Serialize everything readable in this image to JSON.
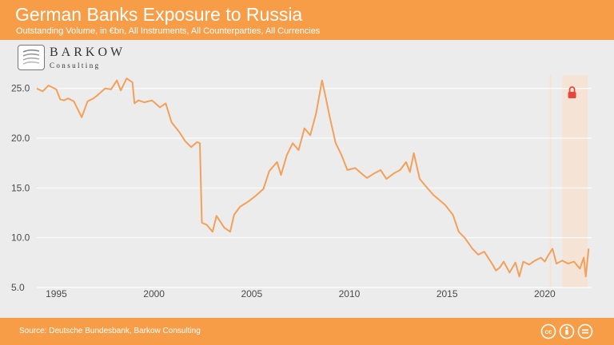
{
  "header": {
    "title": "German Banks Exposure to Russia",
    "subtitle": "Outstanding Volume, in €bn, All Instruments, All Counterparties, All Currencies"
  },
  "logo": {
    "name": "BARKOW",
    "sub": "Consulting"
  },
  "footer": {
    "source": "Source: Deutsche Bundesbank, Barkow Consulting",
    "license_icons": [
      "cc-icon",
      "by-icon",
      "nd-icon"
    ]
  },
  "colors": {
    "accent": "#f79d48",
    "line": "#f2a05a",
    "lock": "#e8453c",
    "shade": "#f6e3d3"
  },
  "chart_data": {
    "type": "line",
    "title": "German Banks Exposure to Russia",
    "xlabel": "",
    "ylabel": "€bn",
    "xlim": [
      1994.0,
      2022.4
    ],
    "ylim": [
      5.0,
      26.5
    ],
    "xticks": [
      1995,
      2000,
      2005,
      2010,
      2015,
      2020
    ],
    "xtick_labels": [
      "1995",
      "2000",
      "2005",
      "2010",
      "2015",
      "2020"
    ],
    "yticks": [
      5.0,
      10.0,
      15.0,
      20.0,
      25.0
    ],
    "ytick_labels": [
      "5.0",
      "10.0",
      "15.0",
      "20.0",
      "25.0"
    ],
    "grid": "horizontal",
    "shaded_ranges": [
      [
        2020.25,
        2020.35
      ],
      [
        2020.9,
        2022.2
      ]
    ],
    "annotation": "lock-icon",
    "annotation_x": 2021.4,
    "series": [
      {
        "name": "Exposure",
        "x": [
          1994.0,
          1994.3,
          1994.6,
          1995.0,
          1995.2,
          1995.4,
          1995.6,
          1995.9,
          1996.3,
          1996.6,
          1996.9,
          1997.1,
          1997.5,
          1997.8,
          1998.1,
          1998.3,
          1998.6,
          1998.9,
          1999.0,
          1999.2,
          1999.5,
          1999.9,
          2000.3,
          2000.6,
          2000.9,
          2001.3,
          2001.6,
          2001.9,
          2002.2,
          2002.35,
          2002.45,
          2002.7,
          2003.0,
          2003.2,
          2003.6,
          2003.9,
          2004.1,
          2004.4,
          2004.8,
          2005.2,
          2005.6,
          2005.9,
          2006.3,
          2006.5,
          2006.8,
          2007.1,
          2007.4,
          2007.7,
          2008.0,
          2008.3,
          2008.6,
          2008.8,
          2009.0,
          2009.3,
          2009.6,
          2009.9,
          2010.3,
          2010.6,
          2010.9,
          2011.3,
          2011.6,
          2011.9,
          2012.3,
          2012.6,
          2012.9,
          2013.1,
          2013.3,
          2013.6,
          2013.9,
          2014.3,
          2014.6,
          2014.9,
          2015.3,
          2015.6,
          2015.9,
          2016.3,
          2016.6,
          2016.9,
          2017.3,
          2017.5,
          2017.7,
          2017.9,
          2018.2,
          2018.5,
          2018.7,
          2018.9,
          2019.2,
          2019.5,
          2019.8,
          2020.0,
          2020.2,
          2020.4,
          2020.6,
          2020.9,
          2021.2,
          2021.5,
          2021.8,
          2022.0,
          2022.1,
          2022.25
        ],
        "values": [
          25.0,
          24.7,
          25.3,
          24.9,
          23.9,
          23.8,
          24.0,
          23.7,
          22.1,
          23.7,
          24.0,
          24.3,
          25.0,
          24.9,
          25.8,
          24.8,
          26.0,
          25.6,
          23.5,
          23.8,
          23.6,
          23.8,
          23.1,
          23.5,
          21.6,
          20.6,
          19.7,
          19.1,
          19.6,
          19.5,
          11.5,
          11.3,
          10.6,
          12.2,
          11.0,
          10.6,
          12.3,
          13.1,
          13.6,
          14.2,
          14.9,
          16.7,
          17.6,
          16.3,
          18.3,
          19.5,
          18.8,
          21.0,
          20.3,
          22.5,
          25.8,
          24.0,
          22.1,
          19.5,
          18.3,
          16.8,
          17.0,
          16.5,
          16.0,
          16.5,
          16.8,
          15.9,
          16.5,
          16.8,
          17.6,
          16.6,
          18.5,
          15.9,
          15.2,
          14.3,
          13.8,
          13.3,
          12.3,
          10.6,
          10.0,
          8.9,
          8.3,
          8.6,
          7.4,
          6.7,
          7.0,
          7.6,
          6.5,
          7.5,
          6.1,
          7.6,
          7.3,
          7.7,
          8.0,
          7.6,
          8.3,
          8.9,
          7.4,
          7.7,
          7.4,
          7.6,
          6.9,
          8.0,
          6.1,
          8.9
        ]
      }
    ]
  }
}
